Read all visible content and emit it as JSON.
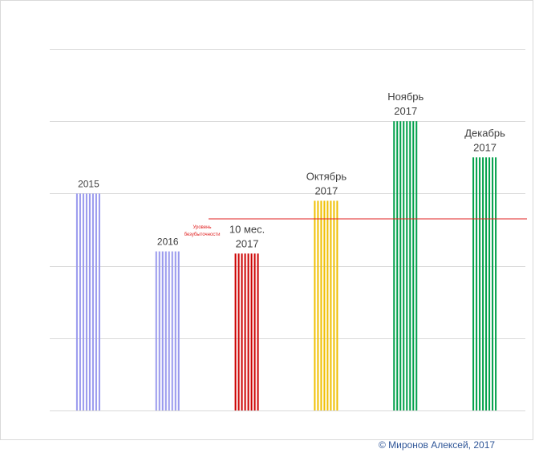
{
  "chart_data": {
    "type": "bar",
    "ylim": [
      0,
      5
    ],
    "grid": true,
    "bars": [
      {
        "label_lines": [
          "2015"
        ],
        "value": 3.0,
        "color": "#9999ee"
      },
      {
        "label_lines": [
          "2016"
        ],
        "value": 2.2,
        "color": "#9999ee"
      },
      {
        "label_lines": [
          "10 мес.",
          "2017"
        ],
        "value": 2.17,
        "color": "#cc0000"
      },
      {
        "label_lines": [
          "Октябрь",
          "2017"
        ],
        "value": 2.9,
        "color": "#f0c000"
      },
      {
        "label_lines": [
          "Ноябрь",
          "2017"
        ],
        "value": 4.0,
        "color": "#00a04a"
      },
      {
        "label_lines": [
          "Декабрь",
          "2017"
        ],
        "value": 3.5,
        "color": "#00a04a"
      }
    ],
    "breakeven": {
      "value": 2.65,
      "label_lines": [
        "Уровень",
        "безубыточности"
      ],
      "color": "#e02020"
    }
  },
  "footer": {
    "copyright": "© Миронов Алексей, 2017"
  }
}
